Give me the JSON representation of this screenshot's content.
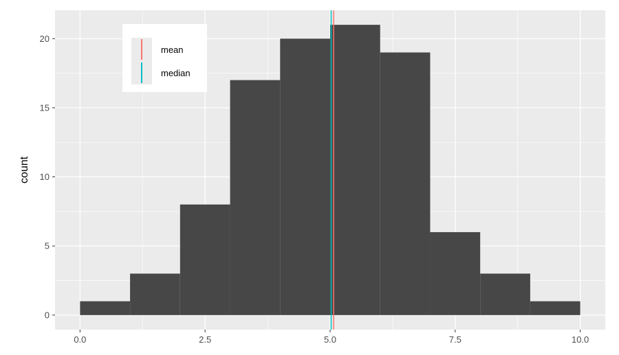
{
  "chart_data": {
    "type": "bar",
    "subtype": "histogram",
    "bins": [
      {
        "x0": 0,
        "x1": 1,
        "count": 1
      },
      {
        "x0": 1,
        "x1": 2,
        "count": 3
      },
      {
        "x0": 2,
        "x1": 3,
        "count": 8
      },
      {
        "x0": 3,
        "x1": 4,
        "count": 17
      },
      {
        "x0": 4,
        "x1": 5,
        "count": 20
      },
      {
        "x0": 5,
        "x1": 6,
        "count": 21
      },
      {
        "x0": 6,
        "x1": 7,
        "count": 19
      },
      {
        "x0": 7,
        "x1": 8,
        "count": 6
      },
      {
        "x0": 8,
        "x1": 9,
        "count": 3
      },
      {
        "x0": 9,
        "x1": 10,
        "count": 1
      }
    ],
    "reference_lines": [
      {
        "name": "mean",
        "value": 5.07,
        "color": "#F8766D"
      },
      {
        "name": "median",
        "value": 5.02,
        "color": "#00BFC4"
      }
    ],
    "xlabel": "",
    "ylabel": "count",
    "xlim": [
      -0.5,
      10.5
    ],
    "ylim": [
      -1.05,
      22.05
    ],
    "x_ticks": [
      {
        "value": 0,
        "label": "0.0"
      },
      {
        "value": 2.5,
        "label": "2.5"
      },
      {
        "value": 5,
        "label": "5.0"
      },
      {
        "value": 7.5,
        "label": "7.5"
      },
      {
        "value": 10,
        "label": "10.0"
      }
    ],
    "y_ticks": [
      {
        "value": 0,
        "label": "0"
      },
      {
        "value": 5,
        "label": "5"
      },
      {
        "value": 10,
        "label": "10"
      },
      {
        "value": 15,
        "label": "15"
      },
      {
        "value": 20,
        "label": "20"
      }
    ],
    "grid": true,
    "legend_position": "top-left",
    "colors": {
      "panel_background": "#EBEBEB",
      "grid_major": "#FFFFFF",
      "bar_fill": "#474747"
    }
  }
}
